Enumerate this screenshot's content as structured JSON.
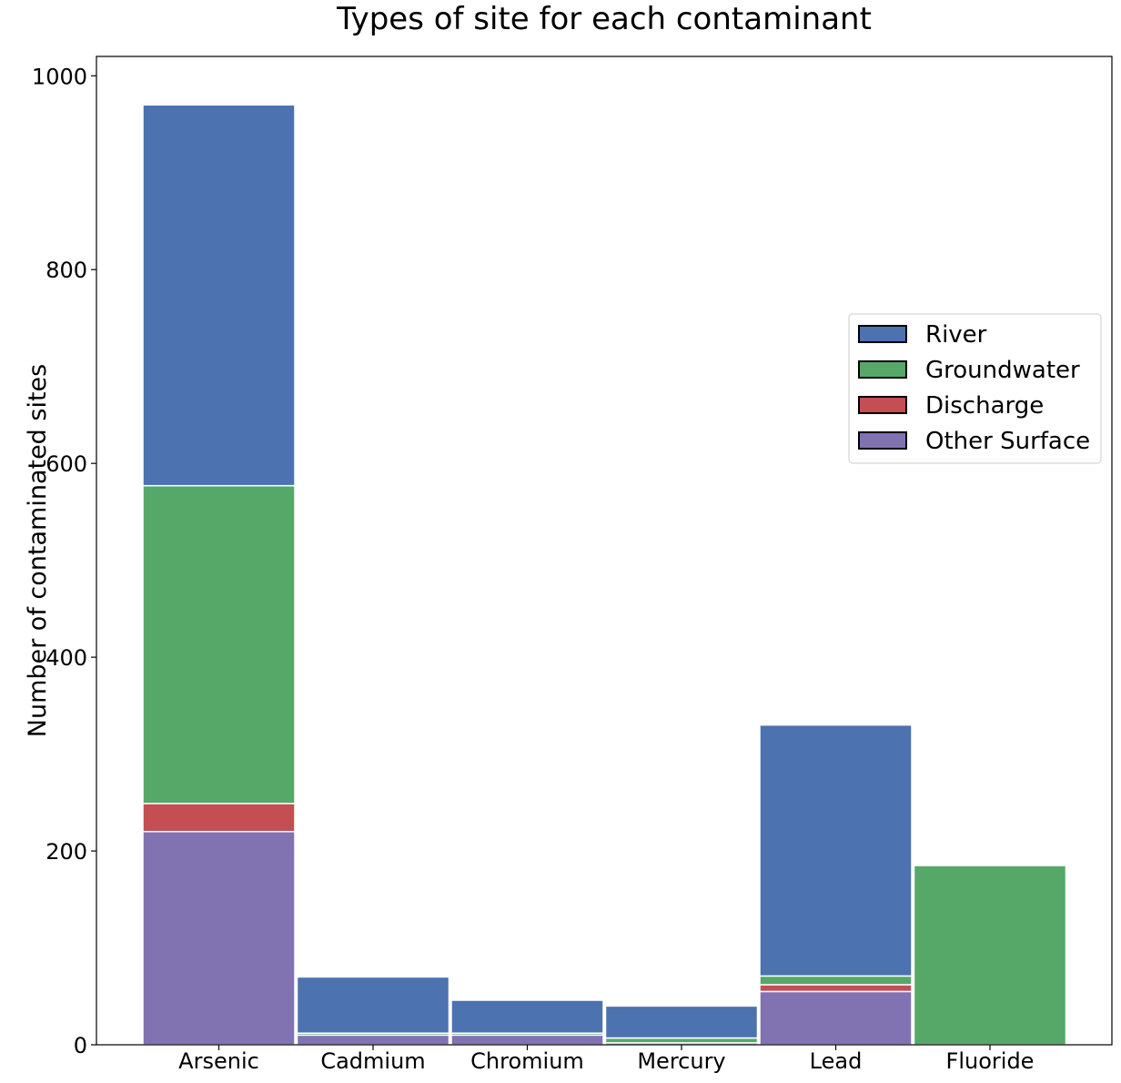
{
  "chart_data": {
    "type": "bar",
    "stacked": true,
    "title": "Types of site for each contaminant",
    "xlabel": "",
    "ylabel": "Number of contaminated sites",
    "categories": [
      "Arsenic",
      "Cadmium",
      "Chromium",
      "Mercury",
      "Lead",
      "Fluoride"
    ],
    "ylim": [
      0,
      1020
    ],
    "yticks": [
      0,
      200,
      400,
      600,
      800,
      1000
    ],
    "grid": false,
    "legend_position": "center-right",
    "series": [
      {
        "name": "Other Surface",
        "color": "#8172b2",
        "values": [
          220,
          10,
          10,
          2,
          55,
          0
        ]
      },
      {
        "name": "Discharge",
        "color": "#c44e52",
        "values": [
          29,
          0,
          0,
          0,
          7,
          0
        ]
      },
      {
        "name": "Groundwater",
        "color": "#55a868",
        "values": [
          328,
          2,
          2,
          5,
          9,
          185
        ]
      },
      {
        "name": "River",
        "color": "#4c72b0",
        "values": [
          393,
          58,
          34,
          33,
          259,
          0
        ]
      }
    ],
    "legend_order": [
      "River",
      "Groundwater",
      "Discharge",
      "Other Surface"
    ]
  }
}
